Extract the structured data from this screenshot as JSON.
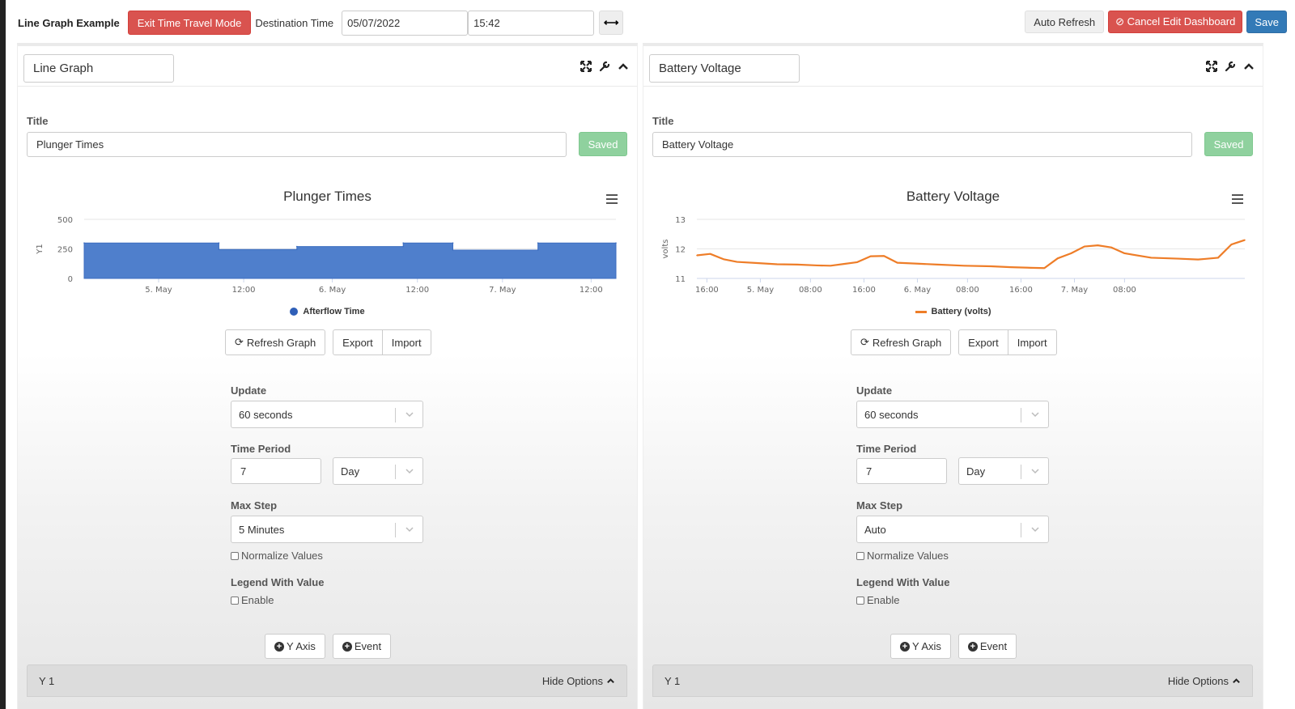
{
  "toolbar": {
    "app_title": "Line Graph Example",
    "exit_time_travel": "Exit Time Travel Mode",
    "destination_label": "Destination Time",
    "date_value": "05/07/2022",
    "time_value": "15:42",
    "arrow_label": "⟷",
    "auto_refresh": "Auto Refresh",
    "cancel_edit": "⊘ Cancel Edit Dashboard",
    "save": "Save"
  },
  "panels": [
    {
      "name": "Line Graph",
      "title_label": "Title",
      "title_value": "Plunger Times",
      "saved_label": "Saved",
      "chart_title": "Plunger Times",
      "legend": "Afterflow Time",
      "refresh": "Refresh Graph",
      "export": "Export",
      "import": "Import",
      "update_label": "Update",
      "update_value": "60 seconds",
      "period_label": "Time Period",
      "period_value": "7",
      "period_unit": "Day",
      "maxstep_label": "Max Step",
      "maxstep_value": "5 Minutes",
      "normalize": "Normalize Values",
      "legend_value_label": "Legend With Value",
      "enable": "Enable",
      "y_axis": "Y Axis",
      "event": "Event",
      "y1": "Y 1",
      "hide_options": "Hide Options"
    },
    {
      "name": "Battery Voltage",
      "title_label": "Title",
      "title_value": "Battery Voltage",
      "saved_label": "Saved",
      "chart_title": "Battery Voltage",
      "legend": "Battery (volts)",
      "refresh": "Refresh Graph",
      "export": "Export",
      "import": "Import",
      "update_label": "Update",
      "update_value": "60 seconds",
      "period_label": "Time Period",
      "period_value": "7",
      "period_unit": "Day",
      "maxstep_label": "Max Step",
      "maxstep_value": "Auto",
      "normalize": "Normalize Values",
      "legend_value_label": "Legend With Value",
      "enable": "Enable",
      "y_axis": "Y Axis",
      "event": "Event",
      "y1": "Y 1",
      "hide_options": "Hide Options"
    }
  ],
  "colors": {
    "danger": "#d9534f",
    "primary": "#337ab7",
    "saved": "#8fd19e",
    "area_series": "#4f7fcc",
    "line_series": "#ee7d28"
  },
  "chart_data": [
    {
      "type": "area",
      "title": "Plunger Times",
      "ylabel": "Y1",
      "xlabel": "",
      "ylim": [
        0,
        500
      ],
      "yticks": [
        "0",
        "250",
        "500"
      ],
      "xticks": [
        "5. May",
        "12:00",
        "6. May",
        "12:00",
        "7. May",
        "12:00"
      ],
      "grid": true,
      "legend_position": "bottom",
      "x_hours": [
        0,
        38,
        38,
        60,
        60,
        90,
        90,
        104,
        104,
        128,
        128,
        150
      ],
      "series": [
        {
          "name": "Afterflow Time",
          "values": [
            300,
            300,
            245,
            245,
            270,
            270,
            300,
            300,
            240,
            240,
            300,
            300
          ]
        }
      ],
      "tick_hours": [
        21,
        45,
        70,
        94,
        118,
        143
      ]
    },
    {
      "type": "line",
      "title": "Battery Voltage",
      "ylabel": "volts",
      "xlabel": "",
      "ylim": [
        11,
        13
      ],
      "yticks": [
        "11",
        "12",
        "13"
      ],
      "xticks": [
        "16:00",
        "5. May",
        "08:00",
        "16:00",
        "6. May",
        "08:00",
        "16:00",
        "7. May",
        "08:00"
      ],
      "grid": true,
      "legend_position": "bottom",
      "series": [
        {
          "name": "Battery (volts)",
          "x_hours": [
            0,
            4,
            8,
            12,
            18,
            24,
            30,
            36,
            40,
            44,
            48,
            52,
            56,
            60,
            66,
            72,
            80,
            88,
            94,
            100,
            104,
            108,
            112,
            116,
            120,
            124,
            128,
            136,
            144,
            150,
            152,
            156,
            160,
            164
          ],
          "values": [
            11.78,
            11.83,
            11.65,
            11.56,
            11.52,
            11.48,
            11.47,
            11.44,
            11.43,
            11.49,
            11.55,
            11.75,
            11.76,
            11.53,
            11.5,
            11.47,
            11.43,
            11.41,
            11.38,
            11.36,
            11.35,
            11.68,
            11.85,
            12.08,
            12.12,
            12.05,
            11.85,
            11.7,
            11.67,
            11.64,
            11.66,
            11.7,
            12.15,
            12.3
          ]
        }
      ],
      "tick_hours": [
        3,
        19,
        34,
        50,
        66,
        81,
        97,
        113,
        128
      ]
    }
  ]
}
